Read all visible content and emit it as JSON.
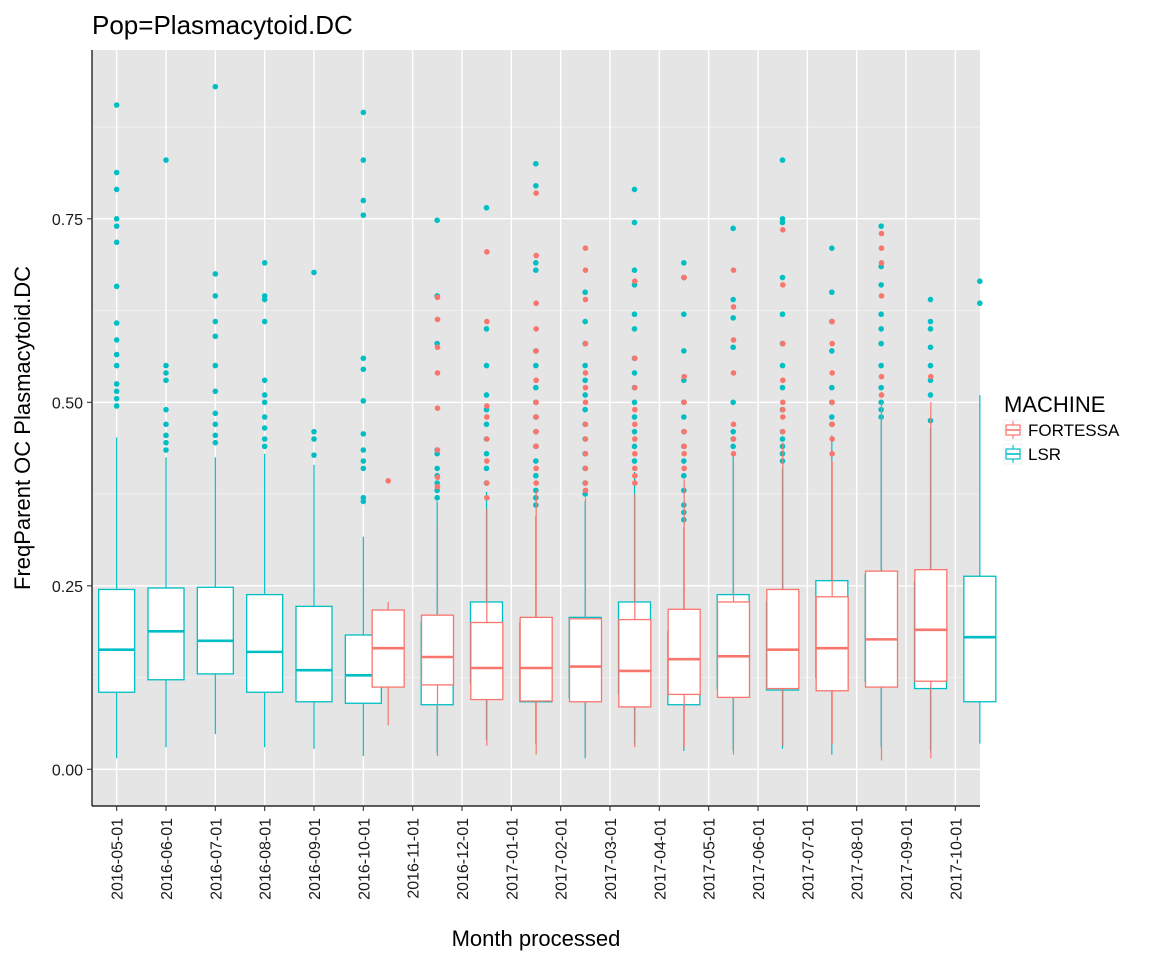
{
  "chart_data": {
    "type": "boxplot",
    "title": "Pop=Plasmacytoid.DC",
    "xlabel": "Month processed",
    "ylabel": "FreqParent OC  Plasmacytoid.DC",
    "ylim": [
      -0.05,
      0.98
    ],
    "yticks": [
      0.0,
      0.25,
      0.5,
      0.75
    ],
    "ytick_labels": [
      "0.00",
      "0.25",
      "0.50",
      "0.75"
    ],
    "grid": true,
    "legend": {
      "title": "MACHINE",
      "position": "right",
      "entries": [
        {
          "name": "FORTESSA",
          "color": "#F8766D"
        },
        {
          "name": "LSR",
          "color": "#00BFC4"
        }
      ]
    },
    "categories": [
      "2016-05-01",
      "2016-06-01",
      "2016-07-01",
      "2016-08-01",
      "2016-09-01",
      "2016-10-01",
      "2016-11-01",
      "2016-12-01",
      "2017-01-01",
      "2017-02-01",
      "2017-03-01",
      "2017-04-01",
      "2017-05-01",
      "2017-06-01",
      "2017-07-01",
      "2017-08-01",
      "2017-09-01",
      "2017-10-01"
    ],
    "series": [
      {
        "name": "FORTESSA",
        "color": "#F8766D",
        "boxes": [
          null,
          null,
          null,
          null,
          null,
          null,
          {
            "min": 0.06,
            "q1": 0.112,
            "median": 0.165,
            "q3": 0.217,
            "max": 0.228,
            "outliers": [
              0.393
            ]
          },
          {
            "min": 0.018,
            "q1": 0.115,
            "median": 0.153,
            "q3": 0.21,
            "max": 0.337,
            "outliers": [
              0.385,
              0.398,
              0.435,
              0.492,
              0.54,
              0.575,
              0.613,
              0.643
            ]
          },
          {
            "min": 0.032,
            "q1": 0.095,
            "median": 0.138,
            "q3": 0.2,
            "max": 0.355,
            "outliers": [
              0.37,
              0.39,
              0.42,
              0.45,
              0.48,
              0.495,
              0.61,
              0.705
            ]
          },
          {
            "min": 0.02,
            "q1": 0.093,
            "median": 0.138,
            "q3": 0.207,
            "max": 0.38,
            "outliers": [
              0.39,
              0.41,
              0.44,
              0.46,
              0.48,
              0.5,
              0.53,
              0.57,
              0.6,
              0.635,
              0.7,
              0.785
            ]
          },
          {
            "min": 0.018,
            "q1": 0.092,
            "median": 0.14,
            "q3": 0.205,
            "max": 0.37,
            "outliers": [
              0.38,
              0.39,
              0.41,
              0.43,
              0.45,
              0.47,
              0.5,
              0.52,
              0.54,
              0.58,
              0.64,
              0.68,
              0.71
            ]
          },
          {
            "min": 0.03,
            "q1": 0.085,
            "median": 0.134,
            "q3": 0.204,
            "max": 0.375,
            "outliers": [
              0.39,
              0.4,
              0.41,
              0.43,
              0.45,
              0.47,
              0.49,
              0.52,
              0.56,
              0.665
            ]
          },
          {
            "min": 0.03,
            "q1": 0.102,
            "median": 0.15,
            "q3": 0.218,
            "max": 0.395,
            "outliers": [
              0.41,
              0.43,
              0.44,
              0.46,
              0.5,
              0.535,
              0.67
            ]
          },
          {
            "min": 0.02,
            "q1": 0.098,
            "median": 0.154,
            "q3": 0.228,
            "max": 0.42,
            "outliers": [
              0.43,
              0.45,
              0.47,
              0.54,
              0.585,
              0.63,
              0.68
            ]
          },
          {
            "min": 0.032,
            "q1": 0.11,
            "median": 0.163,
            "q3": 0.245,
            "max": 0.445,
            "outliers": [
              0.46,
              0.48,
              0.49,
              0.5,
              0.53,
              0.58,
              0.66,
              0.735
            ]
          },
          {
            "min": 0.035,
            "q1": 0.107,
            "median": 0.165,
            "q3": 0.235,
            "max": 0.42,
            "outliers": [
              0.43,
              0.45,
              0.47,
              0.5,
              0.54,
              0.58,
              0.61
            ]
          },
          {
            "min": 0.012,
            "q1": 0.112,
            "median": 0.177,
            "q3": 0.27,
            "max": 0.5,
            "outliers": [
              0.51,
              0.535,
              0.645,
              0.69,
              0.71,
              0.73
            ]
          },
          {
            "min": 0.015,
            "q1": 0.12,
            "median": 0.19,
            "q3": 0.272,
            "max": 0.5,
            "outliers": [
              0.535
            ]
          }
        ]
      },
      {
        "name": "LSR",
        "color": "#00BFC4",
        "boxes": [
          {
            "min": 0.015,
            "q1": 0.105,
            "median": 0.163,
            "q3": 0.245,
            "max": 0.452,
            "outliers": [
              0.495,
              0.505,
              0.515,
              0.525,
              0.55,
              0.565,
              0.585,
              0.608,
              0.658,
              0.718,
              0.74,
              0.75,
              0.79,
              0.813,
              0.905
            ]
          },
          {
            "min": 0.03,
            "q1": 0.122,
            "median": 0.188,
            "q3": 0.247,
            "max": 0.425,
            "outliers": [
              0.435,
              0.445,
              0.455,
              0.47,
              0.49,
              0.53,
              0.54,
              0.55,
              0.83
            ]
          },
          {
            "min": 0.048,
            "q1": 0.13,
            "median": 0.175,
            "q3": 0.248,
            "max": 0.425,
            "outliers": [
              0.445,
              0.455,
              0.47,
              0.485,
              0.515,
              0.55,
              0.59,
              0.61,
              0.645,
              0.675,
              0.93
            ]
          },
          {
            "min": 0.03,
            "q1": 0.105,
            "median": 0.16,
            "q3": 0.238,
            "max": 0.43,
            "outliers": [
              0.44,
              0.45,
              0.465,
              0.48,
              0.5,
              0.51,
              0.53,
              0.61,
              0.64,
              0.645,
              0.69
            ]
          },
          {
            "min": 0.028,
            "q1": 0.092,
            "median": 0.135,
            "q3": 0.222,
            "max": 0.415,
            "outliers": [
              0.428,
              0.45,
              0.46,
              0.677
            ]
          },
          {
            "min": 0.018,
            "q1": 0.09,
            "median": 0.128,
            "q3": 0.183,
            "max": 0.317,
            "outliers": [
              0.365,
              0.37,
              0.41,
              0.42,
              0.435,
              0.457,
              0.502,
              0.545,
              0.56,
              0.755,
              0.775,
              0.83,
              0.895
            ]
          },
          {
            "min": 0.022,
            "q1": 0.088,
            "median": 0.137,
            "q3": 0.2,
            "max": 0.365,
            "outliers": [
              0.37,
              0.38,
              0.39,
              0.4,
              0.41,
              0.43,
              0.435,
              0.58,
              0.645,
              0.748
            ]
          },
          {
            "min": 0.04,
            "q1": 0.118,
            "median": 0.162,
            "q3": 0.228,
            "max": 0.378,
            "outliers": [
              0.39,
              0.41,
              0.43,
              0.45,
              0.47,
              0.49,
              0.51,
              0.55,
              0.6,
              0.765
            ]
          },
          {
            "min": 0.035,
            "q1": 0.092,
            "median": 0.14,
            "q3": 0.2,
            "max": 0.345,
            "outliers": [
              0.36,
              0.37,
              0.38,
              0.4,
              0.42,
              0.44,
              0.46,
              0.48,
              0.5,
              0.52,
              0.55,
              0.57,
              0.68,
              0.69,
              0.795,
              0.825
            ]
          },
          {
            "min": 0.015,
            "q1": 0.098,
            "median": 0.14,
            "q3": 0.207,
            "max": 0.365,
            "outliers": [
              0.375,
              0.39,
              0.41,
              0.43,
              0.45,
              0.47,
              0.49,
              0.51,
              0.53,
              0.55,
              0.58,
              0.61,
              0.65
            ]
          },
          {
            "min": 0.035,
            "q1": 0.103,
            "median": 0.148,
            "q3": 0.228,
            "max": 0.405,
            "outliers": [
              0.42,
              0.44,
              0.46,
              0.48,
              0.5,
              0.52,
              0.54,
              0.56,
              0.6,
              0.62,
              0.66,
              0.68,
              0.745,
              0.79
            ]
          },
          {
            "min": 0.025,
            "q1": 0.088,
            "median": 0.128,
            "q3": 0.188,
            "max": 0.33,
            "outliers": [
              0.34,
              0.35,
              0.36,
              0.38,
              0.4,
              0.42,
              0.44,
              0.46,
              0.48,
              0.5,
              0.53,
              0.57,
              0.62,
              0.67,
              0.69
            ]
          },
          {
            "min": 0.025,
            "q1": 0.11,
            "median": 0.162,
            "q3": 0.238,
            "max": 0.428,
            "outliers": [
              0.44,
              0.45,
              0.46,
              0.5,
              0.575,
              0.615,
              0.64,
              0.737
            ]
          },
          {
            "min": 0.028,
            "q1": 0.108,
            "median": 0.16,
            "q3": 0.228,
            "max": 0.41,
            "outliers": [
              0.42,
              0.43,
              0.44,
              0.45,
              0.46,
              0.49,
              0.52,
              0.55,
              0.58,
              0.62,
              0.67,
              0.745,
              0.75,
              0.83
            ]
          },
          {
            "min": 0.02,
            "q1": 0.125,
            "median": 0.177,
            "q3": 0.257,
            "max": 0.455,
            "outliers": [
              0.47,
              0.48,
              0.5,
              0.52,
              0.57,
              0.61,
              0.65,
              0.71
            ]
          },
          {
            "min": 0.03,
            "q1": 0.12,
            "median": 0.175,
            "q3": 0.265,
            "max": 0.475,
            "outliers": [
              0.48,
              0.49,
              0.5,
              0.52,
              0.55,
              0.58,
              0.6,
              0.62,
              0.66,
              0.685,
              0.74
            ]
          },
          {
            "min": 0.025,
            "q1": 0.11,
            "median": 0.165,
            "q3": 0.255,
            "max": 0.465,
            "outliers": [
              0.475,
              0.51,
              0.53,
              0.55,
              0.575,
              0.6,
              0.61,
              0.64
            ]
          },
          {
            "min": 0.035,
            "q1": 0.092,
            "median": 0.18,
            "q3": 0.263,
            "max": 0.51,
            "outliers": [
              0.635,
              0.665
            ]
          }
        ]
      }
    ]
  }
}
